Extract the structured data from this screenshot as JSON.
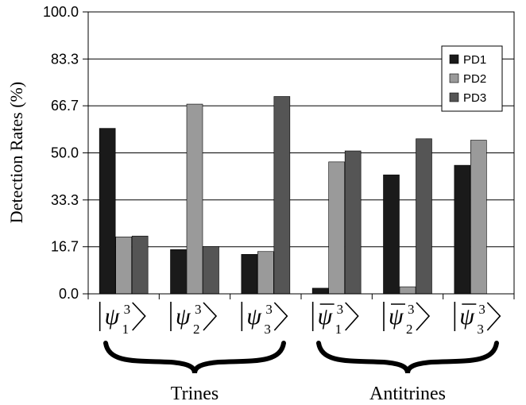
{
  "chart_data": {
    "type": "bar",
    "ylabel": "Detection Rates (%)",
    "ylim": [
      0,
      100
    ],
    "yticks": [
      "0.0",
      "16.7",
      "33.3",
      "50.0",
      "66.7",
      "83.3",
      "100.0"
    ],
    "ytick_values": [
      0,
      16.7,
      33.3,
      50.0,
      66.7,
      83.3,
      100.0
    ],
    "grid": true,
    "legend_position": "top-right",
    "categories": [
      {
        "label": "ψ",
        "sup": "3",
        "sub": "1",
        "bar": false
      },
      {
        "label": "ψ",
        "sup": "3",
        "sub": "2",
        "bar": false
      },
      {
        "label": "ψ",
        "sup": "3",
        "sub": "3",
        "bar": false
      },
      {
        "label": "ψ",
        "sup": "3",
        "sub": "1",
        "bar": true
      },
      {
        "label": "ψ",
        "sup": "3",
        "sub": "2",
        "bar": true
      },
      {
        "label": "ψ",
        "sup": "3",
        "sub": "3",
        "bar": true
      }
    ],
    "series": [
      {
        "name": "PD1",
        "color": "#1a1a1a",
        "values": [
          58.7,
          15.7,
          14.0,
          2.0,
          42.2,
          45.6
        ]
      },
      {
        "name": "PD2",
        "color": "#9a9a9a",
        "values": [
          20.2,
          67.3,
          15.0,
          46.8,
          2.5,
          54.5
        ]
      },
      {
        "name": "PD3",
        "color": "#555555",
        "values": [
          20.5,
          16.8,
          70.0,
          50.7,
          55.0,
          0
        ]
      }
    ],
    "groups": [
      {
        "label": "Trines",
        "categories": [
          0,
          1,
          2
        ]
      },
      {
        "label": "Antitrines",
        "categories": [
          3,
          4,
          5
        ]
      }
    ]
  }
}
